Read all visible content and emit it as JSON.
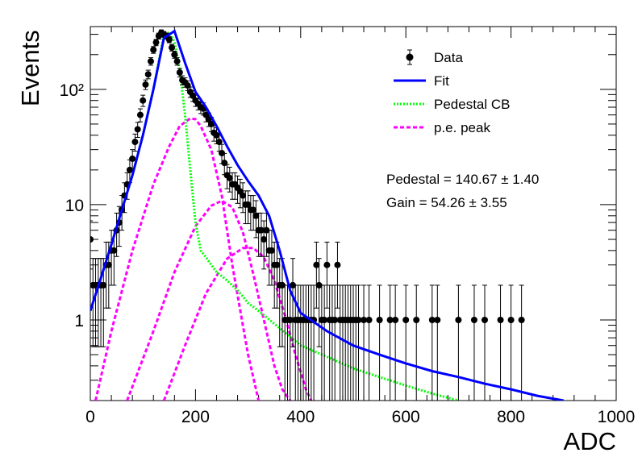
{
  "chart_data": {
    "type": "scatter",
    "xlabel": "ADC",
    "ylabel": "Events",
    "xlim": [
      0,
      1000
    ],
    "ylim": [
      0.2,
      350
    ],
    "yscale": "log",
    "x_ticks": [
      0,
      200,
      400,
      600,
      800,
      1000
    ],
    "x_tick_labels": [
      "0",
      "200",
      "400",
      "600",
      "800",
      "1000"
    ],
    "y_ticks": [
      1,
      10,
      100
    ],
    "y_tick_labels": [
      "1",
      "10",
      "10²"
    ],
    "grid": false,
    "legend_position": "top-right",
    "legend": [
      {
        "key": "data",
        "label": "Data"
      },
      {
        "key": "fit",
        "label": "Fit"
      },
      {
        "key": "pedestal",
        "label": "Pedestal CB"
      },
      {
        "key": "pe",
        "label": "p.e. peak"
      }
    ],
    "annotations": [
      "Pedestal = 140.67 ± 1.40",
      "Gain = 54.26 ± 3.55"
    ],
    "series": [
      {
        "name": "Data",
        "type": "points_with_errors",
        "x": [
          0,
          5,
          10,
          15,
          20,
          25,
          30,
          35,
          40,
          45,
          50,
          55,
          60,
          65,
          70,
          75,
          80,
          85,
          90,
          95,
          100,
          105,
          110,
          115,
          120,
          125,
          130,
          135,
          140,
          145,
          150,
          155,
          160,
          165,
          170,
          175,
          180,
          185,
          190,
          195,
          200,
          205,
          210,
          215,
          220,
          225,
          230,
          235,
          240,
          245,
          250,
          255,
          260,
          265,
          270,
          275,
          280,
          285,
          290,
          295,
          300,
          305,
          310,
          315,
          320,
          325,
          330,
          335,
          340,
          345,
          350,
          355,
          360,
          365,
          370,
          375,
          380,
          385,
          390,
          395,
          400,
          405,
          410,
          415,
          420,
          425,
          430,
          435,
          440,
          445,
          450,
          455,
          460,
          465,
          470,
          475,
          480,
          485,
          490,
          495,
          500,
          505,
          510,
          520,
          530,
          550,
          570,
          580,
          600,
          620,
          650,
          660,
          700,
          730,
          750,
          780,
          800,
          820
        ],
        "values": [
          5,
          2,
          2,
          2,
          2,
          2,
          3,
          3,
          4,
          4,
          6,
          7,
          9,
          12,
          15,
          20,
          25,
          35,
          45,
          60,
          80,
          110,
          135,
          175,
          220,
          255,
          290,
          310,
          300,
          290,
          270,
          230,
          200,
          175,
          140,
          120,
          115,
          108,
          95,
          88,
          80,
          75,
          70,
          68,
          60,
          55,
          50,
          42,
          40,
          35,
          28,
          23,
          18,
          17,
          15,
          15,
          14,
          13,
          12,
          10,
          10,
          9,
          9,
          8,
          6,
          6,
          5,
          6,
          4,
          4,
          3,
          3,
          2,
          2,
          1,
          1,
          1,
          2,
          1,
          1,
          1,
          1,
          1,
          1,
          1,
          1,
          3,
          2,
          1,
          1,
          3,
          1,
          1,
          1,
          3,
          1,
          1,
          1,
          1,
          1,
          1,
          1,
          1,
          1,
          1,
          1,
          1,
          1,
          1,
          1,
          1,
          1,
          1,
          1,
          1,
          1,
          1,
          1
        ]
      },
      {
        "name": "Fit",
        "type": "line",
        "x": [
          0,
          20,
          40,
          60,
          80,
          100,
          120,
          140,
          160,
          180,
          200,
          220,
          240,
          260,
          280,
          300,
          320,
          340,
          360,
          380,
          400,
          450,
          500,
          550,
          600,
          650,
          700,
          750,
          800,
          850,
          900
        ],
        "values": [
          1.2,
          2.3,
          4.5,
          9,
          18,
          40,
          100,
          280,
          320,
          170,
          95,
          70,
          48,
          32,
          22,
          16,
          12,
          8,
          4,
          1.8,
          1.15,
          0.8,
          0.6,
          0.5,
          0.42,
          0.36,
          0.32,
          0.28,
          0.25,
          0.22,
          0.2
        ]
      },
      {
        "name": "Pedestal CB",
        "type": "line",
        "x": [
          0,
          20,
          40,
          60,
          80,
          100,
          120,
          140,
          150,
          160,
          170,
          180,
          190,
          200,
          210,
          220,
          230,
          240,
          250,
          260,
          270,
          280,
          290,
          300,
          310,
          320,
          330,
          400,
          450,
          500,
          550,
          600,
          650,
          700
        ],
        "values": [
          1.2,
          2.3,
          4.5,
          9,
          18,
          40,
          100,
          300,
          310,
          260,
          150,
          60,
          20,
          7,
          4,
          3.5,
          3,
          2.6,
          2.4,
          2.2,
          2,
          1.8,
          1.6,
          1.4,
          1.3,
          1.2,
          1.1,
          0.6,
          0.48,
          0.38,
          0.32,
          0.27,
          0.23,
          0.2
        ]
      },
      {
        "name": "p.e. peak 1",
        "type": "line",
        "x": [
          10,
          40,
          80,
          120,
          150,
          170,
          190,
          200,
          210,
          230,
          250,
          270,
          290,
          300,
          320
        ],
        "values": [
          0.2,
          0.8,
          4,
          15,
          32,
          48,
          56,
          55,
          48,
          30,
          12,
          3,
          0.9,
          0.5,
          0.2
        ]
      },
      {
        "name": "p.e. peak 2",
        "type": "line",
        "x": [
          70,
          120,
          160,
          200,
          230,
          250,
          270,
          290,
          310,
          330,
          350,
          365,
          380
        ],
        "values": [
          0.2,
          0.8,
          2.6,
          6.5,
          9.8,
          10.8,
          9.5,
          5.8,
          2.5,
          1,
          0.4,
          0.25,
          0.2
        ]
      },
      {
        "name": "p.e. peak 3",
        "type": "line",
        "x": [
          140,
          180,
          220,
          260,
          290,
          310,
          330,
          350,
          370,
          390,
          410,
          420
        ],
        "values": [
          0.2,
          0.6,
          1.7,
          3.4,
          4.2,
          4.2,
          3.5,
          2.2,
          1.1,
          0.5,
          0.25,
          0.2
        ]
      }
    ]
  },
  "colors": {
    "data": "#000000",
    "fit": "#0000ff",
    "pedestal": "#00ff00",
    "pe": "#ff00ff"
  }
}
